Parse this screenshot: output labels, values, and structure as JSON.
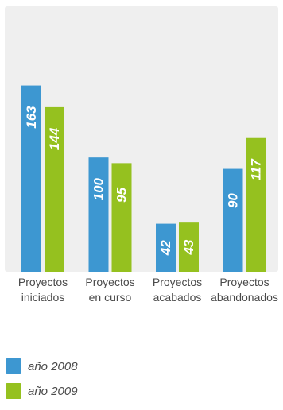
{
  "chart_data": {
    "type": "bar",
    "categories": [
      [
        "Proyectos",
        "iniciados"
      ],
      [
        "Proyectos",
        "en curso"
      ],
      [
        "Proyectos",
        "acabados"
      ],
      [
        "Proyectos",
        "abandonados"
      ]
    ],
    "series": [
      {
        "name": "año 2008",
        "values": [
          163,
          100,
          42,
          90
        ],
        "color": "#3d97d1"
      },
      {
        "name": "año 2009",
        "values": [
          144,
          95,
          43,
          117
        ],
        "color": "#95c11f"
      }
    ],
    "ylim": [
      0,
      178
    ],
    "grid": false,
    "legend_position": "bottom-left",
    "background": "#efefef",
    "label_color": "#ffffff",
    "tick_color": "#4a4a4a"
  }
}
